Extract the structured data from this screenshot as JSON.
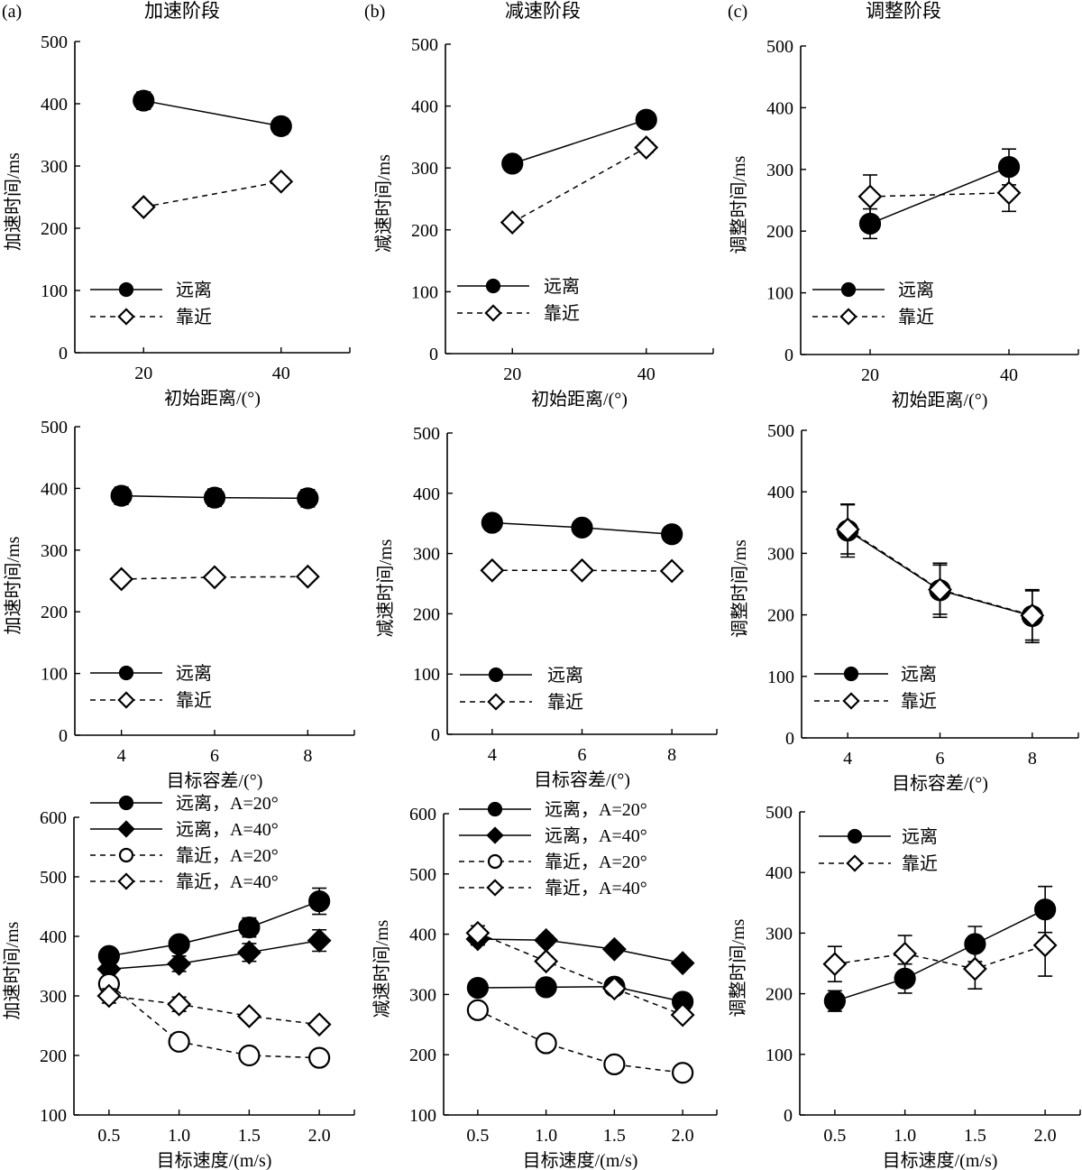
{
  "figure": {
    "columns": [
      {
        "letter": "(a)",
        "title": "加速阶段"
      },
      {
        "letter": "(b)",
        "title": "减速阶段"
      },
      {
        "letter": "(c)",
        "title": "调整阶段"
      }
    ]
  },
  "chart_data": [
    {
      "id": "a1",
      "type": "line",
      "column": 0,
      "row": 0,
      "title": "加速阶段",
      "panel_letter": "(a)",
      "xlabel": "初始距离/(°)",
      "ylabel": "加速时间/ms",
      "x": [
        20,
        40
      ],
      "xlim": [
        10,
        50
      ],
      "xticks": [
        20,
        40
      ],
      "xtick_labels": [
        "20",
        "40"
      ],
      "ylim": [
        0,
        500
      ],
      "yticks": [
        0,
        100,
        200,
        300,
        400,
        500
      ],
      "ytick_labels": [
        "0",
        "100",
        "200",
        "300",
        "400",
        "500"
      ],
      "grid": false,
      "legend_position": "lower-left",
      "series": [
        {
          "name": "远离",
          "marker": "filled-circle",
          "line": "solid",
          "values": [
            405,
            364
          ],
          "errors": [
            14,
            13
          ]
        },
        {
          "name": "靠近",
          "marker": "open-diamond",
          "line": "dashed",
          "values": [
            234,
            275
          ],
          "errors": [
            6,
            7
          ]
        }
      ]
    },
    {
      "id": "b1",
      "type": "line",
      "column": 1,
      "row": 0,
      "title": "减速阶段",
      "panel_letter": "(b)",
      "xlabel": "初始距离/(°)",
      "ylabel": "减速时间/ms",
      "x": [
        20,
        40
      ],
      "xlim": [
        10,
        50
      ],
      "xticks": [
        20,
        40
      ],
      "xtick_labels": [
        "20",
        "40"
      ],
      "ylim": [
        0,
        500
      ],
      "yticks": [
        0,
        100,
        200,
        300,
        400,
        500
      ],
      "ytick_labels": [
        "0",
        "100",
        "200",
        "300",
        "400",
        "500"
      ],
      "grid": false,
      "legend_position": "lower-left",
      "series": [
        {
          "name": "远离",
          "marker": "filled-circle",
          "line": "solid",
          "values": [
            307,
            378
          ],
          "errors": [
            6,
            6
          ]
        },
        {
          "name": "靠近",
          "marker": "open-diamond",
          "line": "dashed",
          "values": [
            212,
            333
          ],
          "errors": [
            5,
            8
          ]
        }
      ]
    },
    {
      "id": "c1",
      "type": "line",
      "column": 2,
      "row": 0,
      "title": "调整阶段",
      "panel_letter": "(c)",
      "xlabel": "初始距离/(°)",
      "ylabel": "调整时间/ms",
      "x": [
        20,
        40
      ],
      "xlim": [
        10,
        50
      ],
      "xticks": [
        20,
        40
      ],
      "xtick_labels": [
        "20",
        "40"
      ],
      "ylim": [
        0,
        500
      ],
      "yticks": [
        0,
        100,
        200,
        300,
        400,
        500
      ],
      "ytick_labels": [
        "0",
        "100",
        "200",
        "300",
        "400",
        "500"
      ],
      "grid": false,
      "legend_position": "lower-left",
      "series": [
        {
          "name": "远离",
          "marker": "filled-circle",
          "line": "solid",
          "values": [
            212,
            304
          ],
          "errors": [
            24,
            29
          ]
        },
        {
          "name": "靠近",
          "marker": "open-diamond",
          "line": "dashed",
          "values": [
            256,
            262
          ],
          "errors": [
            35,
            30
          ]
        }
      ]
    },
    {
      "id": "a2",
      "type": "line",
      "column": 0,
      "row": 1,
      "title": "",
      "panel_letter": "",
      "xlabel": "目标容差/(°)",
      "ylabel": "加速时间/ms",
      "x": [
        4,
        6,
        8
      ],
      "xlim": [
        3,
        9
      ],
      "xticks": [
        4,
        6,
        8
      ],
      "xtick_labels": [
        "4",
        "6",
        "8"
      ],
      "ylim": [
        0,
        500
      ],
      "yticks": [
        0,
        100,
        200,
        300,
        400,
        500
      ],
      "ytick_labels": [
        "0",
        "100",
        "200",
        "300",
        "400",
        "500"
      ],
      "grid": false,
      "legend_position": "lower-left",
      "series": [
        {
          "name": "远离",
          "marker": "filled-circle",
          "line": "solid",
          "values": [
            388,
            385,
            384
          ],
          "errors": [
            14,
            14,
            14
          ]
        },
        {
          "name": "靠近",
          "marker": "open-diamond",
          "line": "dashed",
          "values": [
            253,
            256,
            257
          ],
          "errors": [
            5,
            5,
            5
          ]
        }
      ]
    },
    {
      "id": "b2",
      "type": "line",
      "column": 1,
      "row": 1,
      "title": "",
      "panel_letter": "",
      "xlabel": "目标容差/(°)",
      "ylabel": "减速时间/ms",
      "x": [
        4,
        6,
        8
      ],
      "xlim": [
        3,
        9
      ],
      "xticks": [
        4,
        6,
        8
      ],
      "xtick_labels": [
        "4",
        "6",
        "8"
      ],
      "ylim": [
        0,
        500
      ],
      "yticks": [
        0,
        100,
        200,
        300,
        400,
        500
      ],
      "ytick_labels": [
        "0",
        "100",
        "200",
        "300",
        "400",
        "500"
      ],
      "grid": false,
      "legend_position": "lower-left",
      "series": [
        {
          "name": "远离",
          "marker": "filled-circle",
          "line": "solid",
          "values": [
            351,
            343,
            332
          ],
          "errors": [
            6,
            6,
            6
          ]
        },
        {
          "name": "靠近",
          "marker": "open-diamond",
          "line": "dashed",
          "values": [
            272,
            272,
            271
          ],
          "errors": [
            5,
            5,
            5
          ]
        }
      ]
    },
    {
      "id": "c2",
      "type": "line",
      "column": 2,
      "row": 1,
      "title": "",
      "panel_letter": "",
      "xlabel": "目标容差/(°)",
      "ylabel": "调整时间/ms",
      "x": [
        4,
        6,
        8
      ],
      "xlim": [
        3,
        9
      ],
      "xticks": [
        4,
        6,
        8
      ],
      "xtick_labels": [
        "4",
        "6",
        "8"
      ],
      "ylim": [
        0,
        500
      ],
      "yticks": [
        0,
        100,
        200,
        300,
        400,
        500
      ],
      "ytick_labels": [
        "0",
        "100",
        "200",
        "300",
        "400",
        "500"
      ],
      "grid": false,
      "legend_position": "lower-left",
      "series": [
        {
          "name": "远离",
          "marker": "filled-circle",
          "line": "solid",
          "values": [
            337,
            240,
            198
          ],
          "errors": [
            43,
            44,
            43
          ]
        },
        {
          "name": "靠近",
          "marker": "open-diamond",
          "line": "dashed",
          "values": [
            339,
            241,
            199
          ],
          "errors": [
            40,
            40,
            40
          ]
        }
      ]
    },
    {
      "id": "a3",
      "type": "line",
      "column": 0,
      "row": 2,
      "title": "",
      "panel_letter": "",
      "xlabel": "目标速度/(m/s)",
      "ylabel": "加速时间/ms",
      "x": [
        0.5,
        1.0,
        1.5,
        2.0
      ],
      "xlim": [
        0.25,
        2.25
      ],
      "xticks": [
        0.5,
        1.0,
        1.5,
        2.0
      ],
      "xtick_labels": [
        "0.5",
        "1.0",
        "1.5",
        "2.0"
      ],
      "ylim": [
        100,
        600
      ],
      "yticks": [
        100,
        200,
        300,
        400,
        500,
        600
      ],
      "ytick_labels": [
        "100",
        "200",
        "300",
        "400",
        "500",
        "600"
      ],
      "grid": false,
      "legend_position": "top-left",
      "series": [
        {
          "name": "远离，A=20°",
          "marker": "filled-circle",
          "line": "solid",
          "values": [
            367,
            387,
            415,
            459
          ],
          "errors": [
            10,
            12,
            16,
            22
          ]
        },
        {
          "name": "远离，A=40°",
          "marker": "filled-diamond",
          "line": "solid",
          "values": [
            345,
            354,
            373,
            393
          ],
          "errors": [
            8,
            13,
            15,
            18
          ]
        },
        {
          "name": "靠近，A=20°",
          "marker": "open-circle",
          "line": "dashed",
          "values": [
            320,
            223,
            200,
            196
          ],
          "errors": [
            5,
            5,
            5,
            5
          ]
        },
        {
          "name": "靠近，A=40°",
          "marker": "open-diamond",
          "line": "dashed",
          "values": [
            300,
            286,
            266,
            252
          ],
          "errors": [
            12,
            12,
            5,
            5
          ]
        }
      ]
    },
    {
      "id": "b3",
      "type": "line",
      "column": 1,
      "row": 2,
      "title": "",
      "panel_letter": "",
      "xlabel": "目标速度/(m/s)",
      "ylabel": "减速时间/ms",
      "x": [
        0.5,
        1.0,
        1.5,
        2.0
      ],
      "xlim": [
        0.25,
        2.25
      ],
      "xticks": [
        0.5,
        1.0,
        1.5,
        2.0
      ],
      "xtick_labels": [
        "0.5",
        "1.0",
        "1.5",
        "2.0"
      ],
      "ylim": [
        100,
        600
      ],
      "yticks": [
        100,
        200,
        300,
        400,
        500,
        600
      ],
      "ytick_labels": [
        "100",
        "200",
        "300",
        "400",
        "500",
        "600"
      ],
      "grid": false,
      "legend_position": "top-left",
      "series": [
        {
          "name": "远离，A=20°",
          "marker": "filled-circle",
          "line": "solid",
          "values": [
            311,
            312,
            313,
            288
          ],
          "errors": [
            5,
            5,
            5,
            5
          ]
        },
        {
          "name": "远离，A=40°",
          "marker": "filled-diamond",
          "line": "solid",
          "values": [
            392,
            390,
            375,
            352
          ],
          "errors": [
            10,
            8,
            7,
            7
          ]
        },
        {
          "name": "靠近，A=20°",
          "marker": "open-circle",
          "line": "dashed",
          "values": [
            274,
            219,
            184,
            170
          ],
          "errors": [
            5,
            5,
            5,
            5
          ]
        },
        {
          "name": "靠近，A=40°",
          "marker": "open-diamond",
          "line": "dashed",
          "values": [
            402,
            355,
            310,
            266
          ],
          "errors": [
            12,
            8,
            6,
            6
          ]
        }
      ]
    },
    {
      "id": "c3",
      "type": "line",
      "column": 2,
      "row": 2,
      "title": "",
      "panel_letter": "",
      "xlabel": "目标速度/(m/s)",
      "ylabel": "调整时间/ms",
      "x": [
        0.5,
        1.0,
        1.5,
        2.0
      ],
      "xlim": [
        0.25,
        2.25
      ],
      "xticks": [
        0.5,
        1.0,
        1.5,
        2.0
      ],
      "xtick_labels": [
        "0.5",
        "1.0",
        "1.5",
        "2.0"
      ],
      "ylim": [
        0,
        500
      ],
      "yticks": [
        0,
        100,
        200,
        300,
        400,
        500
      ],
      "ytick_labels": [
        "0",
        "100",
        "200",
        "300",
        "400",
        "500"
      ],
      "grid": false,
      "legend_position": "top-left",
      "series": [
        {
          "name": "远离",
          "marker": "filled-circle",
          "line": "solid",
          "values": [
            188,
            225,
            282,
            339
          ],
          "errors": [
            17,
            24,
            29,
            38
          ]
        },
        {
          "name": "靠近",
          "marker": "open-diamond",
          "line": "dashed",
          "values": [
            249,
            266,
            241,
            280
          ],
          "errors": [
            29,
            30,
            33,
            51
          ]
        }
      ]
    }
  ]
}
